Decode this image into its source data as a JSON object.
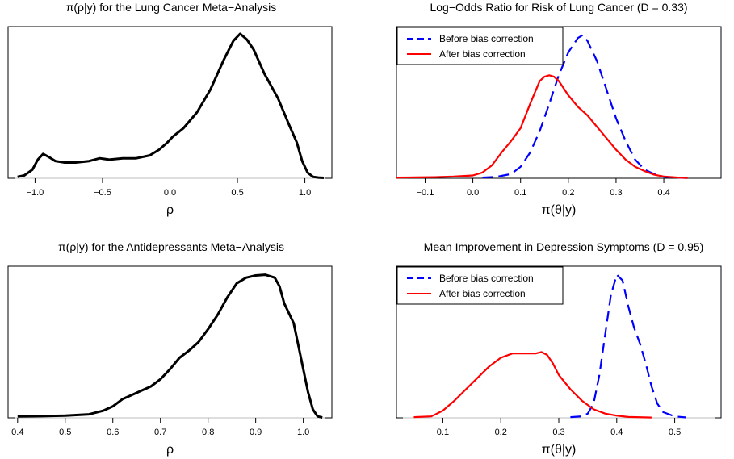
{
  "chart_data": [
    {
      "type": "line",
      "title": "π(ρ|y) for the Lung Cancer Meta−Analysis",
      "xlabel": "ρ",
      "ylabel": "",
      "xlim": [
        -1.2,
        1.2
      ],
      "ylim": [
        0,
        1.06
      ],
      "xticks": [
        -1.0,
        -0.5,
        0.0,
        0.5,
        1.0
      ],
      "xtick_labels": [
        "−1.0",
        "−0.5",
        "0.0",
        "0.5",
        "1.0"
      ],
      "baseline": true,
      "legend": [],
      "series": [
        {
          "style": "solid",
          "color": "#000000",
          "x": [
            -1.13,
            -1.08,
            -1.02,
            -0.98,
            -0.94,
            -0.9,
            -0.85,
            -0.78,
            -0.7,
            -0.6,
            -0.52,
            -0.45,
            -0.35,
            -0.25,
            -0.15,
            -0.08,
            -0.02,
            0.02,
            0.1,
            0.2,
            0.3,
            0.4,
            0.47,
            0.52,
            0.57,
            0.62,
            0.7,
            0.8,
            0.88,
            0.94,
            0.98,
            1.02,
            1.06,
            1.1,
            1.14
          ],
          "y": [
            0.01,
            0.02,
            0.06,
            0.13,
            0.17,
            0.15,
            0.12,
            0.11,
            0.11,
            0.12,
            0.14,
            0.13,
            0.14,
            0.14,
            0.16,
            0.2,
            0.25,
            0.29,
            0.35,
            0.46,
            0.62,
            0.83,
            0.96,
            1.01,
            0.97,
            0.9,
            0.73,
            0.56,
            0.38,
            0.25,
            0.12,
            0.04,
            0.01,
            0.005,
            0.003
          ]
        }
      ]
    },
    {
      "type": "line",
      "title": "Log−Odds Ratio for Risk of Lung Cancer (D = 0.33)",
      "xlabel": "π(θ|y)",
      "ylabel": "",
      "xlim": [
        -0.16,
        0.52
      ],
      "ylim": [
        0,
        1.06
      ],
      "xticks": [
        -0.1,
        0.0,
        0.1,
        0.2,
        0.3,
        0.4
      ],
      "xtick_labels": [
        "−0.1",
        "0.0",
        "0.1",
        "0.2",
        "0.3",
        "0.4"
      ],
      "baseline": false,
      "legend": [
        "Before bias correction",
        "After bias correction"
      ],
      "legend_position": "top-left",
      "series": [
        {
          "name": "Before bias correction",
          "style": "dashed",
          "color": "#0000ff",
          "x": [
            0.02,
            0.05,
            0.08,
            0.1,
            0.12,
            0.14,
            0.16,
            0.18,
            0.2,
            0.22,
            0.23,
            0.24,
            0.26,
            0.28,
            0.3,
            0.32,
            0.34,
            0.36,
            0.38,
            0.4,
            0.42,
            0.45
          ],
          "y": [
            0.005,
            0.01,
            0.03,
            0.08,
            0.18,
            0.33,
            0.52,
            0.72,
            0.88,
            0.98,
            1.0,
            0.96,
            0.82,
            0.62,
            0.42,
            0.26,
            0.13,
            0.06,
            0.03,
            0.01,
            0.005,
            0.002
          ]
        },
        {
          "name": "After bias correction",
          "style": "solid",
          "color": "#ff0000",
          "x": [
            -0.16,
            -0.12,
            -0.08,
            -0.04,
            0.0,
            0.02,
            0.04,
            0.06,
            0.08,
            0.1,
            0.12,
            0.14,
            0.15,
            0.16,
            0.17,
            0.18,
            0.2,
            0.22,
            0.24,
            0.26,
            0.28,
            0.3,
            0.32,
            0.34,
            0.36,
            0.38,
            0.4,
            0.43,
            0.45
          ],
          "y": [
            0.005,
            0.006,
            0.008,
            0.012,
            0.02,
            0.04,
            0.09,
            0.18,
            0.26,
            0.35,
            0.52,
            0.68,
            0.71,
            0.72,
            0.71,
            0.68,
            0.58,
            0.5,
            0.44,
            0.36,
            0.28,
            0.2,
            0.13,
            0.08,
            0.05,
            0.025,
            0.012,
            0.005,
            0.002
          ]
        }
      ]
    },
    {
      "type": "line",
      "title": "π(ρ|y) for the Antidepressants Meta−Analysis",
      "xlabel": "ρ",
      "ylabel": "",
      "xlim": [
        0.38,
        1.06
      ],
      "ylim": [
        0,
        1.06
      ],
      "xticks": [
        0.4,
        0.5,
        0.6,
        0.7,
        0.8,
        0.9,
        1.0
      ],
      "xtick_labels": [
        "0.4",
        "0.5",
        "0.6",
        "0.7",
        "0.8",
        "0.9",
        "1.0"
      ],
      "baseline": true,
      "legend": [],
      "series": [
        {
          "style": "solid",
          "color": "#000000",
          "x": [
            0.4,
            0.45,
            0.5,
            0.55,
            0.58,
            0.6,
            0.62,
            0.64,
            0.66,
            0.68,
            0.7,
            0.72,
            0.74,
            0.76,
            0.78,
            0.8,
            0.82,
            0.84,
            0.86,
            0.88,
            0.9,
            0.92,
            0.94,
            0.95,
            0.96,
            0.97,
            0.98,
            0.99,
            1.0,
            1.01,
            1.02,
            1.03,
            1.04
          ],
          "y": [
            0.01,
            0.012,
            0.015,
            0.025,
            0.05,
            0.08,
            0.13,
            0.16,
            0.19,
            0.22,
            0.27,
            0.34,
            0.42,
            0.47,
            0.53,
            0.62,
            0.72,
            0.84,
            0.94,
            0.98,
            0.995,
            1.0,
            0.98,
            0.92,
            0.8,
            0.73,
            0.66,
            0.5,
            0.34,
            0.18,
            0.06,
            0.01,
            0.003
          ]
        }
      ]
    },
    {
      "type": "line",
      "title": "Mean Improvement in Depression Symptoms (D = 0.95)",
      "xlabel": "π(θ|y)",
      "ylabel": "",
      "xlim": [
        0.02,
        0.58
      ],
      "ylim": [
        0,
        1.06
      ],
      "xticks": [
        0.1,
        0.2,
        0.3,
        0.4,
        0.5
      ],
      "xtick_labels": [
        "0.1",
        "0.2",
        "0.3",
        "0.4",
        "0.5"
      ],
      "baseline": true,
      "legend": [
        "Before bias correction",
        "After bias correction"
      ],
      "legend_position": "top-left",
      "series": [
        {
          "name": "Before bias correction",
          "style": "dashed",
          "color": "#0000ff",
          "x": [
            0.32,
            0.34,
            0.35,
            0.36,
            0.37,
            0.38,
            0.39,
            0.4,
            0.41,
            0.42,
            0.43,
            0.44,
            0.45,
            0.46,
            0.47,
            0.48,
            0.5,
            0.52
          ],
          "y": [
            0.005,
            0.01,
            0.03,
            0.1,
            0.3,
            0.58,
            0.86,
            1.0,
            0.96,
            0.78,
            0.63,
            0.52,
            0.38,
            0.22,
            0.1,
            0.04,
            0.01,
            0.003
          ]
        },
        {
          "name": "After bias correction",
          "style": "solid",
          "color": "#ff0000",
          "x": [
            0.05,
            0.08,
            0.1,
            0.12,
            0.14,
            0.16,
            0.18,
            0.2,
            0.22,
            0.24,
            0.26,
            0.27,
            0.28,
            0.29,
            0.3,
            0.32,
            0.34,
            0.36,
            0.38,
            0.4,
            0.42,
            0.46
          ],
          "y": [
            0.005,
            0.01,
            0.05,
            0.12,
            0.2,
            0.28,
            0.36,
            0.42,
            0.45,
            0.45,
            0.45,
            0.46,
            0.44,
            0.38,
            0.3,
            0.2,
            0.12,
            0.06,
            0.03,
            0.015,
            0.006,
            0.002
          ]
        }
      ]
    }
  ]
}
